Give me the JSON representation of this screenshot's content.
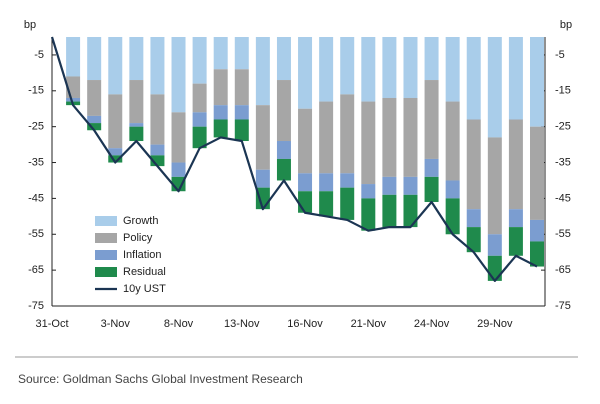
{
  "chart_data": {
    "type": "bar",
    "stacked": true,
    "y_label": "bp",
    "categories": [
      "31-Oct",
      null,
      null,
      "3-Nov",
      null,
      null,
      "8-Nov",
      null,
      null,
      "13-Nov",
      null,
      null,
      "16-Nov",
      null,
      null,
      "21-Nov",
      null,
      null,
      "24-Nov",
      null,
      null,
      "29-Nov",
      null,
      null
    ],
    "series": [
      {
        "name": "Growth",
        "color": "#a9cdea",
        "values": [
          null,
          -11,
          -12,
          -16,
          -12,
          -16,
          -21,
          -13,
          -9,
          -9,
          -19,
          -12,
          -20,
          -18,
          -16,
          -18,
          -17,
          -17,
          -12,
          -18,
          -23,
          -28,
          -23,
          -25
        ]
      },
      {
        "name": "Policy",
        "color": "#a6a6a6",
        "values": [
          null,
          -6,
          -10,
          -15,
          -12,
          -14,
          -14,
          -8,
          -10,
          -10,
          -18,
          -17,
          -18,
          -20,
          -22,
          -23,
          -22,
          -22,
          -22,
          -22,
          -25,
          -27,
          -25,
          -26
        ]
      },
      {
        "name": "Inflation",
        "color": "#7b9dd0",
        "values": [
          null,
          -1,
          -2,
          -2,
          -1,
          -3,
          -4,
          -4,
          -4,
          -4,
          -5,
          -5,
          -5,
          -5,
          -4,
          -4,
          -5,
          -5,
          -5,
          -5,
          -5,
          -6,
          -5,
          -6
        ]
      },
      {
        "name": "Residual",
        "color": "#1f8a4c",
        "values": [
          null,
          -1,
          -2,
          -2,
          -4,
          -3,
          -4,
          -6,
          -5,
          -6,
          -6,
          -6,
          -6,
          -7,
          -9,
          -9,
          -9,
          -9,
          -7,
          -10,
          -7,
          -7,
          -8,
          -7
        ]
      },
      {
        "name": "10y UST",
        "type": "line",
        "color": "#1b3553",
        "values": [
          0,
          -19,
          -26,
          -35,
          -29,
          -36,
          -43,
          -31,
          -28,
          -29,
          -48,
          -40,
          -49,
          -50,
          -51,
          -54,
          -53,
          -53,
          -46,
          -55,
          -60,
          -68,
          -61,
          -64
        ]
      }
    ],
    "ylim": [
      -75,
      0
    ],
    "yticks": [
      -5,
      -15,
      -25,
      -35,
      -45,
      -55,
      -65,
      -75
    ],
    "legend": "lower left",
    "source": "Source: Goldman Sachs Global Investment Research"
  }
}
